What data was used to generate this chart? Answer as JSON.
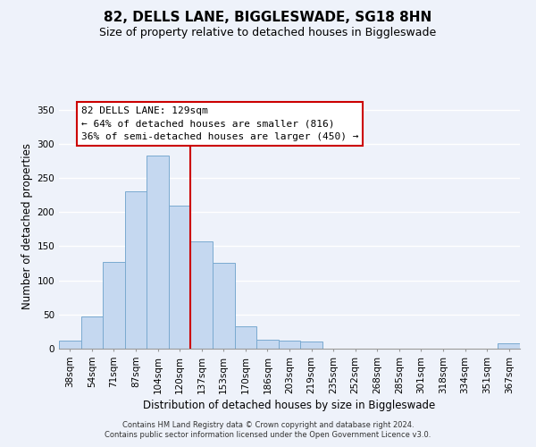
{
  "title": "82, DELLS LANE, BIGGLESWADE, SG18 8HN",
  "subtitle": "Size of property relative to detached houses in Biggleswade",
  "xlabel": "Distribution of detached houses by size in Biggleswade",
  "ylabel": "Number of detached properties",
  "bar_labels": [
    "38sqm",
    "54sqm",
    "71sqm",
    "87sqm",
    "104sqm",
    "120sqm",
    "137sqm",
    "153sqm",
    "170sqm",
    "186sqm",
    "203sqm",
    "219sqm",
    "235sqm",
    "252sqm",
    "268sqm",
    "285sqm",
    "301sqm",
    "318sqm",
    "334sqm",
    "351sqm",
    "367sqm"
  ],
  "bar_values": [
    12,
    47,
    127,
    231,
    283,
    210,
    157,
    126,
    33,
    13,
    12,
    10,
    0,
    0,
    0,
    0,
    0,
    0,
    0,
    0,
    8
  ],
  "bar_color": "#c5d8f0",
  "bar_edge_color": "#7aaad0",
  "vline_x_index": 5,
  "vline_color": "#cc0000",
  "annotation_title": "82 DELLS LANE: 129sqm",
  "annotation_line1": "← 64% of detached houses are smaller (816)",
  "annotation_line2": "36% of semi-detached houses are larger (450) →",
  "annotation_box_color": "#ffffff",
  "annotation_box_edge": "#cc0000",
  "ylim": [
    0,
    360
  ],
  "yticks": [
    0,
    50,
    100,
    150,
    200,
    250,
    300,
    350
  ],
  "footer1": "Contains HM Land Registry data © Crown copyright and database right 2024.",
  "footer2": "Contains public sector information licensed under the Open Government Licence v3.0.",
  "background_color": "#eef2fa",
  "grid_color": "#ffffff",
  "title_fontsize": 11,
  "subtitle_fontsize": 9,
  "axis_label_fontsize": 8.5,
  "tick_fontsize": 7.5
}
